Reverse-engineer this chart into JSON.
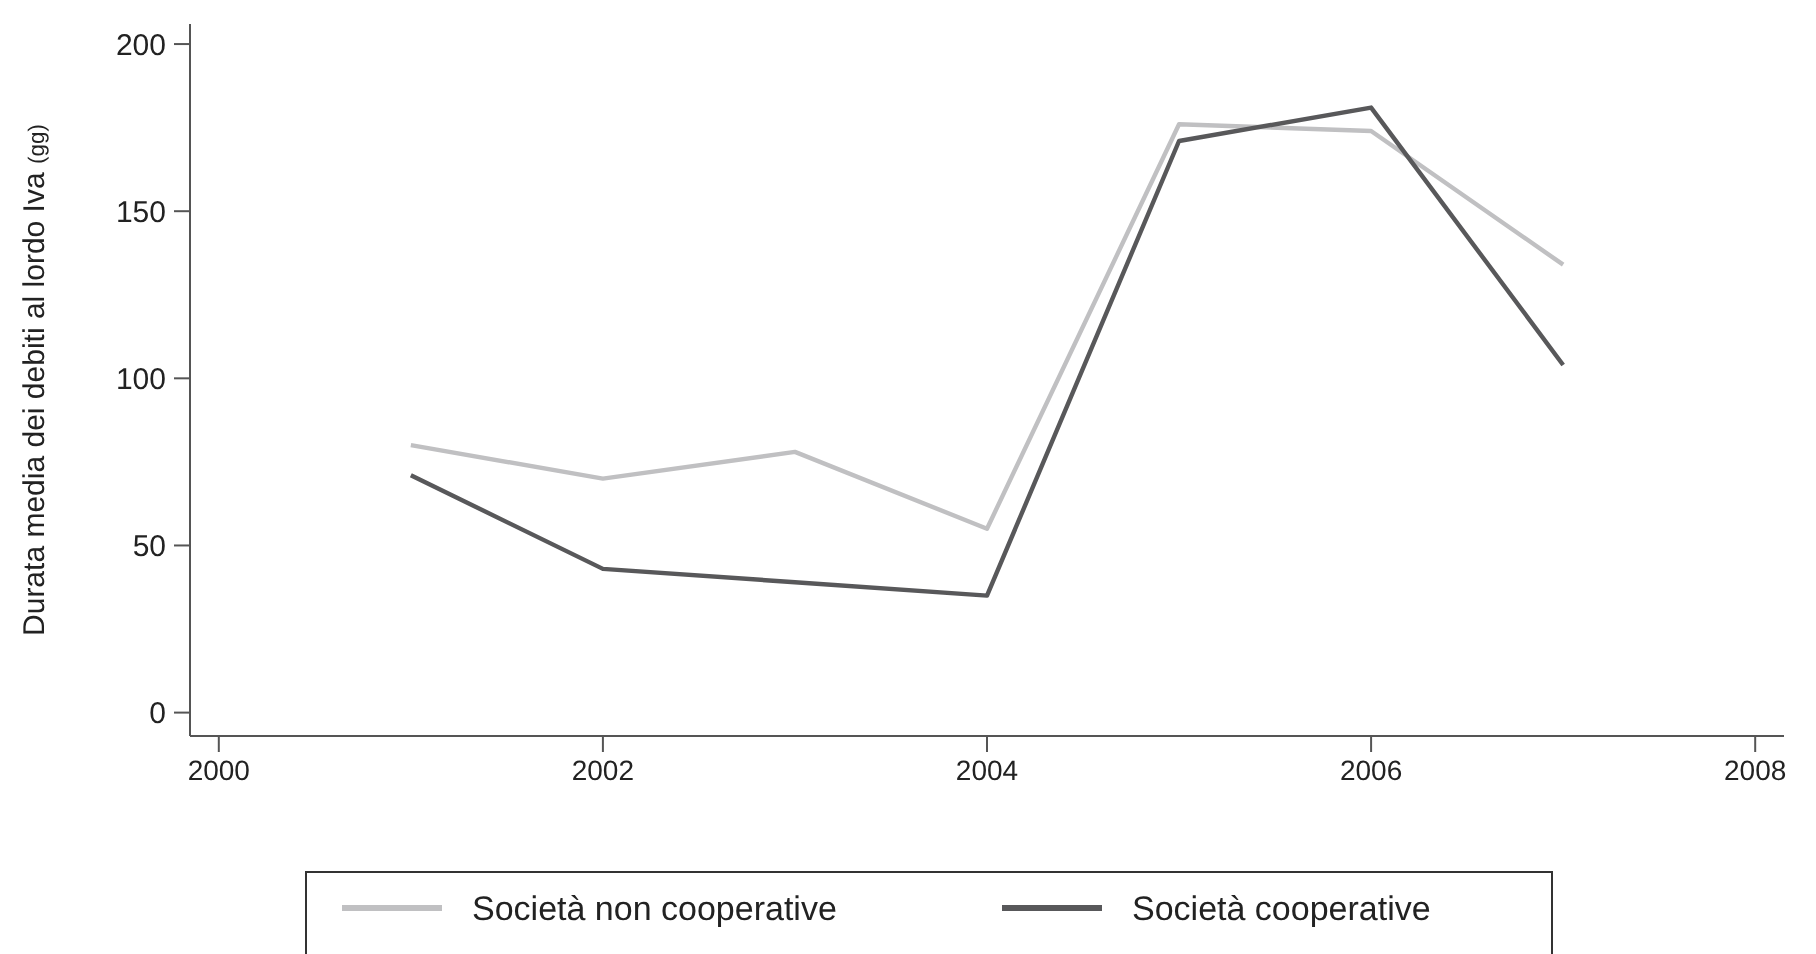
{
  "chart_data": {
    "type": "line",
    "ylabel": "Durata media dei debiti al lordo Iva $_{(gg)}$",
    "x": [
      2001,
      2002,
      2003,
      2004,
      2005,
      2006,
      2007
    ],
    "series": [
      {
        "name": "Società non cooperative",
        "color": "#c0c0c2",
        "values": [
          80,
          70,
          78,
          55,
          176,
          174,
          134
        ]
      },
      {
        "name": "Società cooperative",
        "color": "#58585a",
        "values": [
          71,
          43,
          39,
          35,
          171,
          181,
          104
        ]
      }
    ],
    "xlim": [
      1999.85,
      2008.15
    ],
    "xticks": [
      2000,
      2002,
      2004,
      2006,
      2008
    ],
    "ylim": [
      -7,
      206
    ],
    "yticks": [
      0,
      50,
      100,
      150,
      200
    ],
    "grid": false,
    "legend": "bottom",
    "marker": "none",
    "line_style": "solid"
  }
}
